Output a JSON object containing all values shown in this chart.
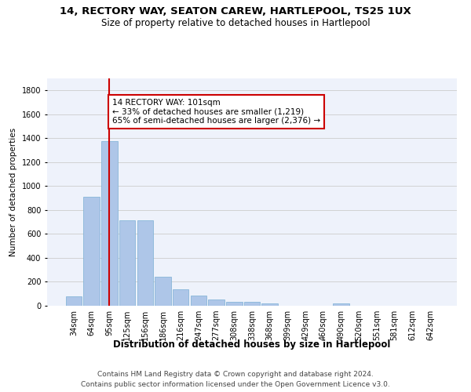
{
  "title": "14, RECTORY WAY, SEATON CAREW, HARTLEPOOL, TS25 1UX",
  "subtitle": "Size of property relative to detached houses in Hartlepool",
  "xlabel": "Distribution of detached houses by size in Hartlepool",
  "ylabel": "Number of detached properties",
  "categories": [
    "34sqm",
    "64sqm",
    "95sqm",
    "125sqm",
    "156sqm",
    "186sqm",
    "216sqm",
    "247sqm",
    "277sqm",
    "308sqm",
    "338sqm",
    "368sqm",
    "399sqm",
    "429sqm",
    "460sqm",
    "490sqm",
    "520sqm",
    "551sqm",
    "581sqm",
    "612sqm",
    "642sqm"
  ],
  "values": [
    80,
    910,
    1375,
    715,
    715,
    245,
    140,
    85,
    50,
    30,
    30,
    18,
    0,
    0,
    0,
    18,
    0,
    0,
    0,
    0,
    0
  ],
  "bar_color": "#aec6e8",
  "bar_edge_color": "#7bafd4",
  "vline_x_index": 2,
  "vline_color": "#cc0000",
  "annotation_text": "14 RECTORY WAY: 101sqm\n← 33% of detached houses are smaller (1,219)\n65% of semi-detached houses are larger (2,376) →",
  "annotation_box_color": "#ffffff",
  "annotation_box_edge_color": "#cc0000",
  "ylim": [
    0,
    1900
  ],
  "yticks": [
    0,
    200,
    400,
    600,
    800,
    1000,
    1200,
    1400,
    1600,
    1800
  ],
  "grid_color": "#cccccc",
  "background_color": "#eef2fb",
  "footer_line1": "Contains HM Land Registry data © Crown copyright and database right 2024.",
  "footer_line2": "Contains public sector information licensed under the Open Government Licence v3.0.",
  "title_fontsize": 9.5,
  "subtitle_fontsize": 8.5,
  "xlabel_fontsize": 8.5,
  "ylabel_fontsize": 7.5,
  "tick_fontsize": 7,
  "footer_fontsize": 6.5,
  "annotation_fontsize": 7.5
}
